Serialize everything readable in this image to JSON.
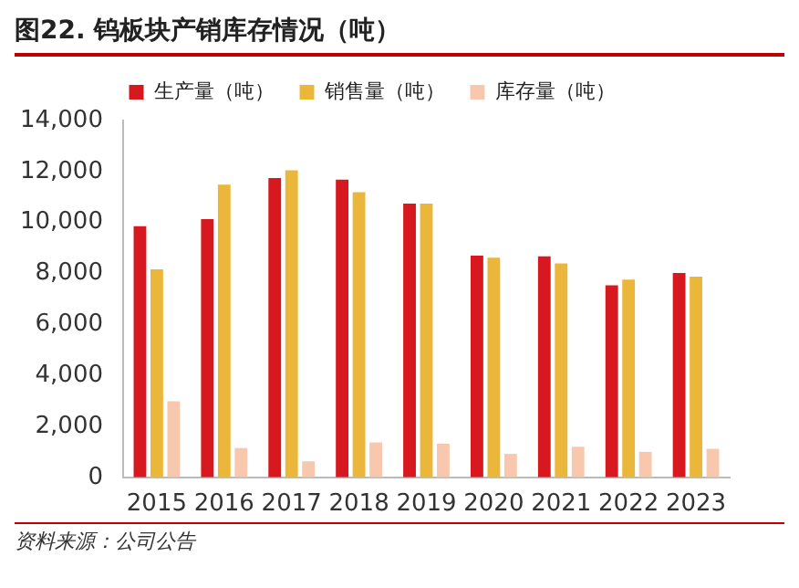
{
  "chart_data": {
    "type": "bar",
    "title": "图22. 钨板块产销库存情况（吨）",
    "annotations": [
      "资料来源：公司公告"
    ],
    "categories": [
      "2015",
      "2016",
      "2017",
      "2018",
      "2019",
      "2020",
      "2021",
      "2022",
      "2023"
    ],
    "series": [
      {
        "name": "生产量（吨）",
        "color": "#d7181f",
        "values": [
          9850,
          10130,
          11740,
          11680,
          10740,
          8700,
          8670,
          7530,
          8020
        ]
      },
      {
        "name": "销售量（吨）",
        "color": "#ebb73a",
        "values": [
          8160,
          11480,
          12050,
          11190,
          10740,
          8620,
          8390,
          7760,
          7870
        ]
      },
      {
        "name": "库存量（吨）",
        "color": "#f8c8ae",
        "values": [
          2980,
          1150,
          630,
          1370,
          1320,
          920,
          1200,
          1000,
          1120
        ]
      }
    ],
    "ylim": [
      0,
      14000
    ],
    "yticks": [
      {
        "value": 0,
        "label": "0"
      },
      {
        "value": 2000,
        "label": "2,000"
      },
      {
        "value": 4000,
        "label": "4,000"
      },
      {
        "value": 6000,
        "label": "6,000"
      },
      {
        "value": 8000,
        "label": "8,000"
      },
      {
        "value": 10000,
        "label": "10,000"
      },
      {
        "value": 12000,
        "label": "12,000"
      },
      {
        "value": 14000,
        "label": "14,000"
      }
    ],
    "grid": false,
    "legend": "top"
  }
}
